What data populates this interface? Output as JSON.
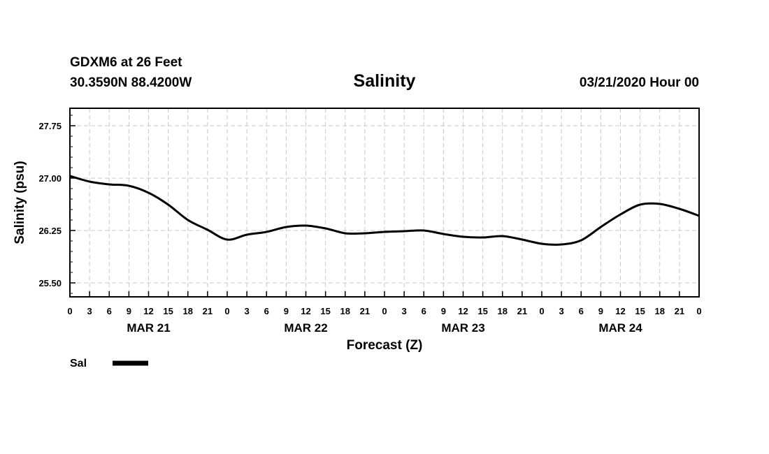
{
  "header": {
    "station_line": "GDXM6 at 26 Feet",
    "coords_line": "30.3590N 88.4200W",
    "datetime": "03/21/2020 Hour 00"
  },
  "chart_data": {
    "type": "line",
    "title": "Salinity",
    "ylabel": "Salinity (psu)",
    "xlabel": "Forecast (Z)",
    "ylim": [
      25.3,
      28.0
    ],
    "xlim": [
      0,
      96
    ],
    "yticks": [
      25.5,
      26.25,
      27.0,
      27.75
    ],
    "ytick_labels": [
      "25.50",
      "26.25",
      "27.00",
      "27.75"
    ],
    "xtick_hours": [
      0,
      3,
      6,
      9,
      12,
      15,
      18,
      21,
      24,
      27,
      30,
      33,
      36,
      39,
      42,
      45,
      48,
      51,
      54,
      57,
      60,
      63,
      66,
      69,
      72,
      75,
      78,
      81,
      84,
      87,
      90,
      93,
      96
    ],
    "xtick_labels": [
      "0",
      "3",
      "6",
      "9",
      "12",
      "15",
      "18",
      "21",
      "0",
      "3",
      "6",
      "9",
      "12",
      "15",
      "18",
      "21",
      "0",
      "3",
      "6",
      "9",
      "12",
      "15",
      "18",
      "21",
      "0",
      "3",
      "6",
      "9",
      "12",
      "15",
      "18",
      "21",
      "0"
    ],
    "day_labels": [
      {
        "hour": 12,
        "label": "MAR 21"
      },
      {
        "hour": 36,
        "label": "MAR 22"
      },
      {
        "hour": 60,
        "label": "MAR 23"
      },
      {
        "hour": 84,
        "label": "MAR 24"
      }
    ],
    "grid": true,
    "series": [
      {
        "name": "Sal",
        "x": [
          0,
          3,
          6,
          9,
          12,
          15,
          18,
          21,
          24,
          27,
          30,
          33,
          36,
          39,
          42,
          45,
          48,
          51,
          54,
          57,
          60,
          63,
          66,
          69,
          72,
          75,
          78,
          81,
          84,
          87,
          90,
          93,
          96
        ],
        "values": [
          27.03,
          26.95,
          26.91,
          26.89,
          26.79,
          26.62,
          26.4,
          26.26,
          26.12,
          26.19,
          26.23,
          26.3,
          26.32,
          26.28,
          26.21,
          26.21,
          26.23,
          26.24,
          26.25,
          26.2,
          26.16,
          26.15,
          26.17,
          26.12,
          26.06,
          26.05,
          26.11,
          26.3,
          26.48,
          26.62,
          26.63,
          26.56,
          26.46
        ]
      }
    ],
    "legend": {
      "position": "bottom-left",
      "label": "Sal"
    }
  }
}
